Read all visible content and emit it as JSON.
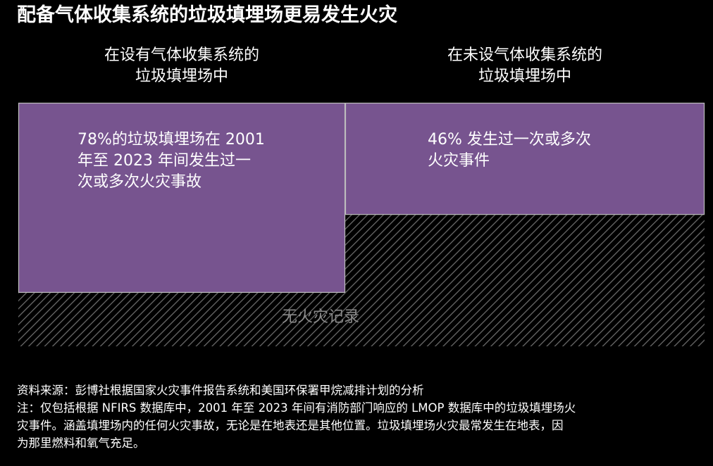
{
  "title": "配备气体收集系统的垃圾填埋场更易发生火灾",
  "colors": {
    "bar": "#77548f",
    "bar_border": "#bdbdbd",
    "hatch": "#6a6a6a",
    "background": "#000000"
  },
  "chart_data": {
    "type": "bar",
    "categories": [
      [
        "在设有气体收集系统的",
        "垃圾填埋场中"
      ],
      [
        "在未设气体收集系统的",
        "垃圾填埋场中"
      ]
    ],
    "unit": "%",
    "ylim": [
      0,
      100
    ],
    "series": [
      {
        "values": [
          78,
          46
        ],
        "labels": [
          [
            "78%的垃圾填埋场在 2001",
            "年至 2023 年间发生过一",
            "次或多次火灾事故"
          ],
          [
            "46% 发生过一次或多次",
            "火灾事件"
          ]
        ]
      },
      {
        "values": [
          22,
          54
        ],
        "label": "无火灾记录"
      }
    ]
  },
  "notes": {
    "source": "资料来源：彭博社根据国家火灾事件报告系统和美国环保署甲烷减排计划的分析",
    "note_lines": [
      "注：仅包括根据 NFIRS 数据库中，2001 年至 2023 年间有消防部门响应的 LMOP 数据库中的垃圾填埋场火",
      "灾事件。涵盖填埋场内的任何火灾事故，无论是在地表还是其他位置。垃圾填埋场火灾最常发生在地表，因",
      "为那里燃料和氧气充足。"
    ]
  }
}
